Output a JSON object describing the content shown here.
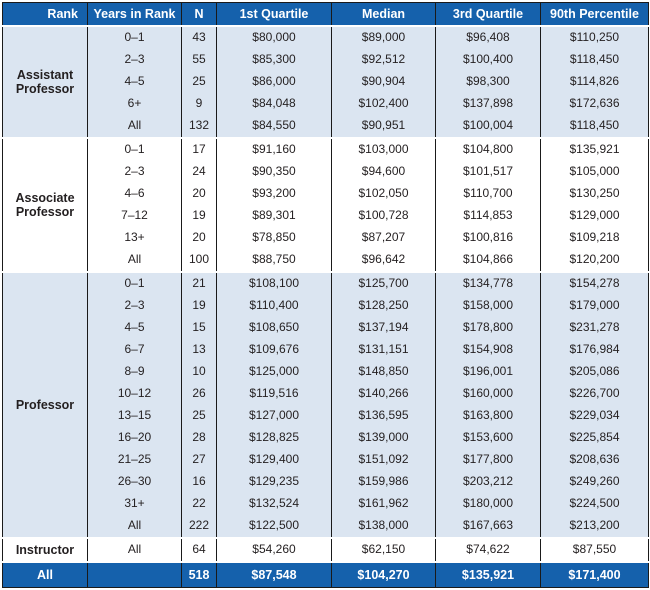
{
  "colors": {
    "header_blue": "#1561ac",
    "band_light_blue": "#dbe5f1",
    "text": "#231f20",
    "grid_line": "#1a1a1a"
  },
  "chart_data": {
    "type": "table",
    "columns": [
      "Rank",
      "Years in Rank",
      "N",
      "1st Quartile",
      "Median",
      "3rd Quartile",
      "90th Percentile"
    ],
    "groups": [
      {
        "rank": "Assistant Professor",
        "shaded": true,
        "rows": [
          [
            "0–1",
            "43",
            "$80,000",
            "$89,000",
            "$96,408",
            "$110,250"
          ],
          [
            "2–3",
            "55",
            "$85,300",
            "$92,512",
            "$100,400",
            "$118,450"
          ],
          [
            "4–5",
            "25",
            "$86,000",
            "$90,904",
            "$98,300",
            "$114,826"
          ],
          [
            "6+",
            "9",
            "$84,048",
            "$102,400",
            "$137,898",
            "$172,636"
          ],
          [
            "All",
            "132",
            "$84,550",
            "$90,951",
            "$100,004",
            "$118,450"
          ]
        ]
      },
      {
        "rank": "Associate Professor",
        "shaded": false,
        "rows": [
          [
            "0–1",
            "17",
            "$91,160",
            "$103,000",
            "$104,800",
            "$135,921"
          ],
          [
            "2–3",
            "24",
            "$90,350",
            "$94,600",
            "$101,517",
            "$105,000"
          ],
          [
            "4–6",
            "20",
            "$93,200",
            "$102,050",
            "$110,700",
            "$130,250"
          ],
          [
            "7–12",
            "19",
            "$89,301",
            "$100,728",
            "$114,853",
            "$129,000"
          ],
          [
            "13+",
            "20",
            "$78,850",
            "$87,207",
            "$100,816",
            "$109,218"
          ],
          [
            "All",
            "100",
            "$88,750",
            "$96,642",
            "$104,866",
            "$120,200"
          ]
        ]
      },
      {
        "rank": "Professor",
        "shaded": true,
        "rows": [
          [
            "0–1",
            "21",
            "$108,100",
            "$125,700",
            "$134,778",
            "$154,278"
          ],
          [
            "2–3",
            "19",
            "$110,400",
            "$128,250",
            "$158,000",
            "$179,000"
          ],
          [
            "4–5",
            "15",
            "$108,650",
            "$137,194",
            "$178,800",
            "$231,278"
          ],
          [
            "6–7",
            "13",
            "$109,676",
            "$131,151",
            "$154,908",
            "$176,984"
          ],
          [
            "8–9",
            "10",
            "$125,000",
            "$148,850",
            "$196,001",
            "$205,086"
          ],
          [
            "10–12",
            "26",
            "$119,516",
            "$140,266",
            "$160,000",
            "$226,700"
          ],
          [
            "13–15",
            "25",
            "$127,000",
            "$136,595",
            "$163,800",
            "$229,034"
          ],
          [
            "16–20",
            "28",
            "$128,825",
            "$139,000",
            "$153,600",
            "$225,854"
          ],
          [
            "21–25",
            "27",
            "$129,400",
            "$151,092",
            "$177,800",
            "$208,636"
          ],
          [
            "26–30",
            "16",
            "$129,235",
            "$159,986",
            "$203,212",
            "$249,260"
          ],
          [
            "31+",
            "22",
            "$132,524",
            "$161,962",
            "$180,000",
            "$224,500"
          ],
          [
            "All",
            "222",
            "$122,500",
            "$138,000",
            "$167,663",
            "$213,200"
          ]
        ]
      },
      {
        "rank": "Instructor",
        "shaded": false,
        "rows": [
          [
            "All",
            "64",
            "$54,260",
            "$62,150",
            "$74,622",
            "$87,550"
          ]
        ]
      }
    ],
    "footer": [
      "All",
      "",
      "518",
      "$87,548",
      "$104,270",
      "$135,921",
      "$171,400"
    ]
  }
}
